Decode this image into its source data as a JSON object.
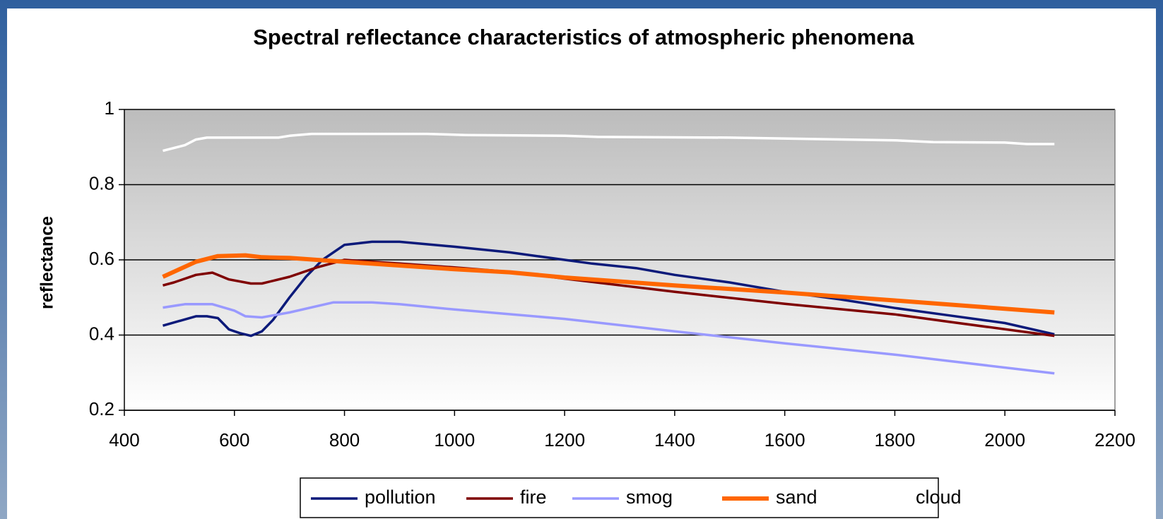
{
  "chart_data": {
    "type": "line",
    "title": "Spectral reflectance characteristics of atmospheric phenomena",
    "y_label": "reflectance",
    "xlim": [
      400,
      2200
    ],
    "xticks": [
      400,
      600,
      800,
      1000,
      1200,
      1400,
      1600,
      1800,
      2000,
      2200
    ],
    "ylim": [
      0.2,
      1
    ],
    "yticks": [
      0.2,
      0.4,
      0.6,
      0.8,
      1
    ],
    "grid": true,
    "legend": "bottom",
    "series": [
      {
        "name": "pollution",
        "color": "#0c1a7a",
        "x": [
          470,
          530,
          550,
          570,
          590,
          610,
          630,
          650,
          670,
          700,
          730,
          760,
          800,
          850,
          900,
          1000,
          1100,
          1200,
          1250,
          1330,
          1400,
          1500,
          1600,
          1700,
          1800,
          1900,
          2000,
          2090
        ],
        "values": [
          0.425,
          0.45,
          0.45,
          0.445,
          0.415,
          0.405,
          0.398,
          0.41,
          0.44,
          0.5,
          0.555,
          0.6,
          0.64,
          0.648,
          0.648,
          0.635,
          0.62,
          0.6,
          0.59,
          0.578,
          0.56,
          0.54,
          0.515,
          0.495,
          0.472,
          0.452,
          0.432,
          0.402
        ]
      },
      {
        "name": "fire",
        "color": "#7f0000",
        "x": [
          470,
          490,
          530,
          560,
          590,
          630,
          650,
          700,
          750,
          800,
          900,
          1000,
          1100,
          1200,
          1400,
          1600,
          1800,
          1900,
          2090
        ],
        "values": [
          0.532,
          0.54,
          0.56,
          0.566,
          0.548,
          0.537,
          0.537,
          0.555,
          0.58,
          0.6,
          0.59,
          0.58,
          0.568,
          0.55,
          0.515,
          0.483,
          0.455,
          0.435,
          0.398
        ]
      },
      {
        "name": "smog",
        "color": "#9999ff",
        "x": [
          470,
          510,
          560,
          600,
          620,
          650,
          700,
          780,
          850,
          900,
          1000,
          1200,
          1400,
          1600,
          1800,
          2090
        ],
        "values": [
          0.473,
          0.482,
          0.482,
          0.465,
          0.45,
          0.447,
          0.46,
          0.487,
          0.487,
          0.482,
          0.468,
          0.443,
          0.41,
          0.378,
          0.348,
          0.298
        ]
      },
      {
        "name": "sand",
        "color": "#ff6600",
        "x": [
          470,
          530,
          570,
          620,
          650,
          700,
          800,
          900,
          1000,
          1100,
          1200,
          1400,
          1600,
          1800,
          2090
        ],
        "values": [
          0.555,
          0.595,
          0.61,
          0.612,
          0.607,
          0.605,
          0.595,
          0.585,
          0.575,
          0.567,
          0.553,
          0.532,
          0.513,
          0.492,
          0.46
        ]
      },
      {
        "name": "cloud",
        "color": "#ffffff",
        "x": [
          470,
          510,
          530,
          550,
          680,
          700,
          740,
          950,
          1020,
          1200,
          1260,
          1500,
          1800,
          1870,
          2000,
          2040,
          2090
        ],
        "values": [
          0.89,
          0.905,
          0.92,
          0.925,
          0.925,
          0.93,
          0.935,
          0.935,
          0.932,
          0.93,
          0.927,
          0.925,
          0.918,
          0.913,
          0.912,
          0.908,
          0.908
        ]
      }
    ]
  }
}
